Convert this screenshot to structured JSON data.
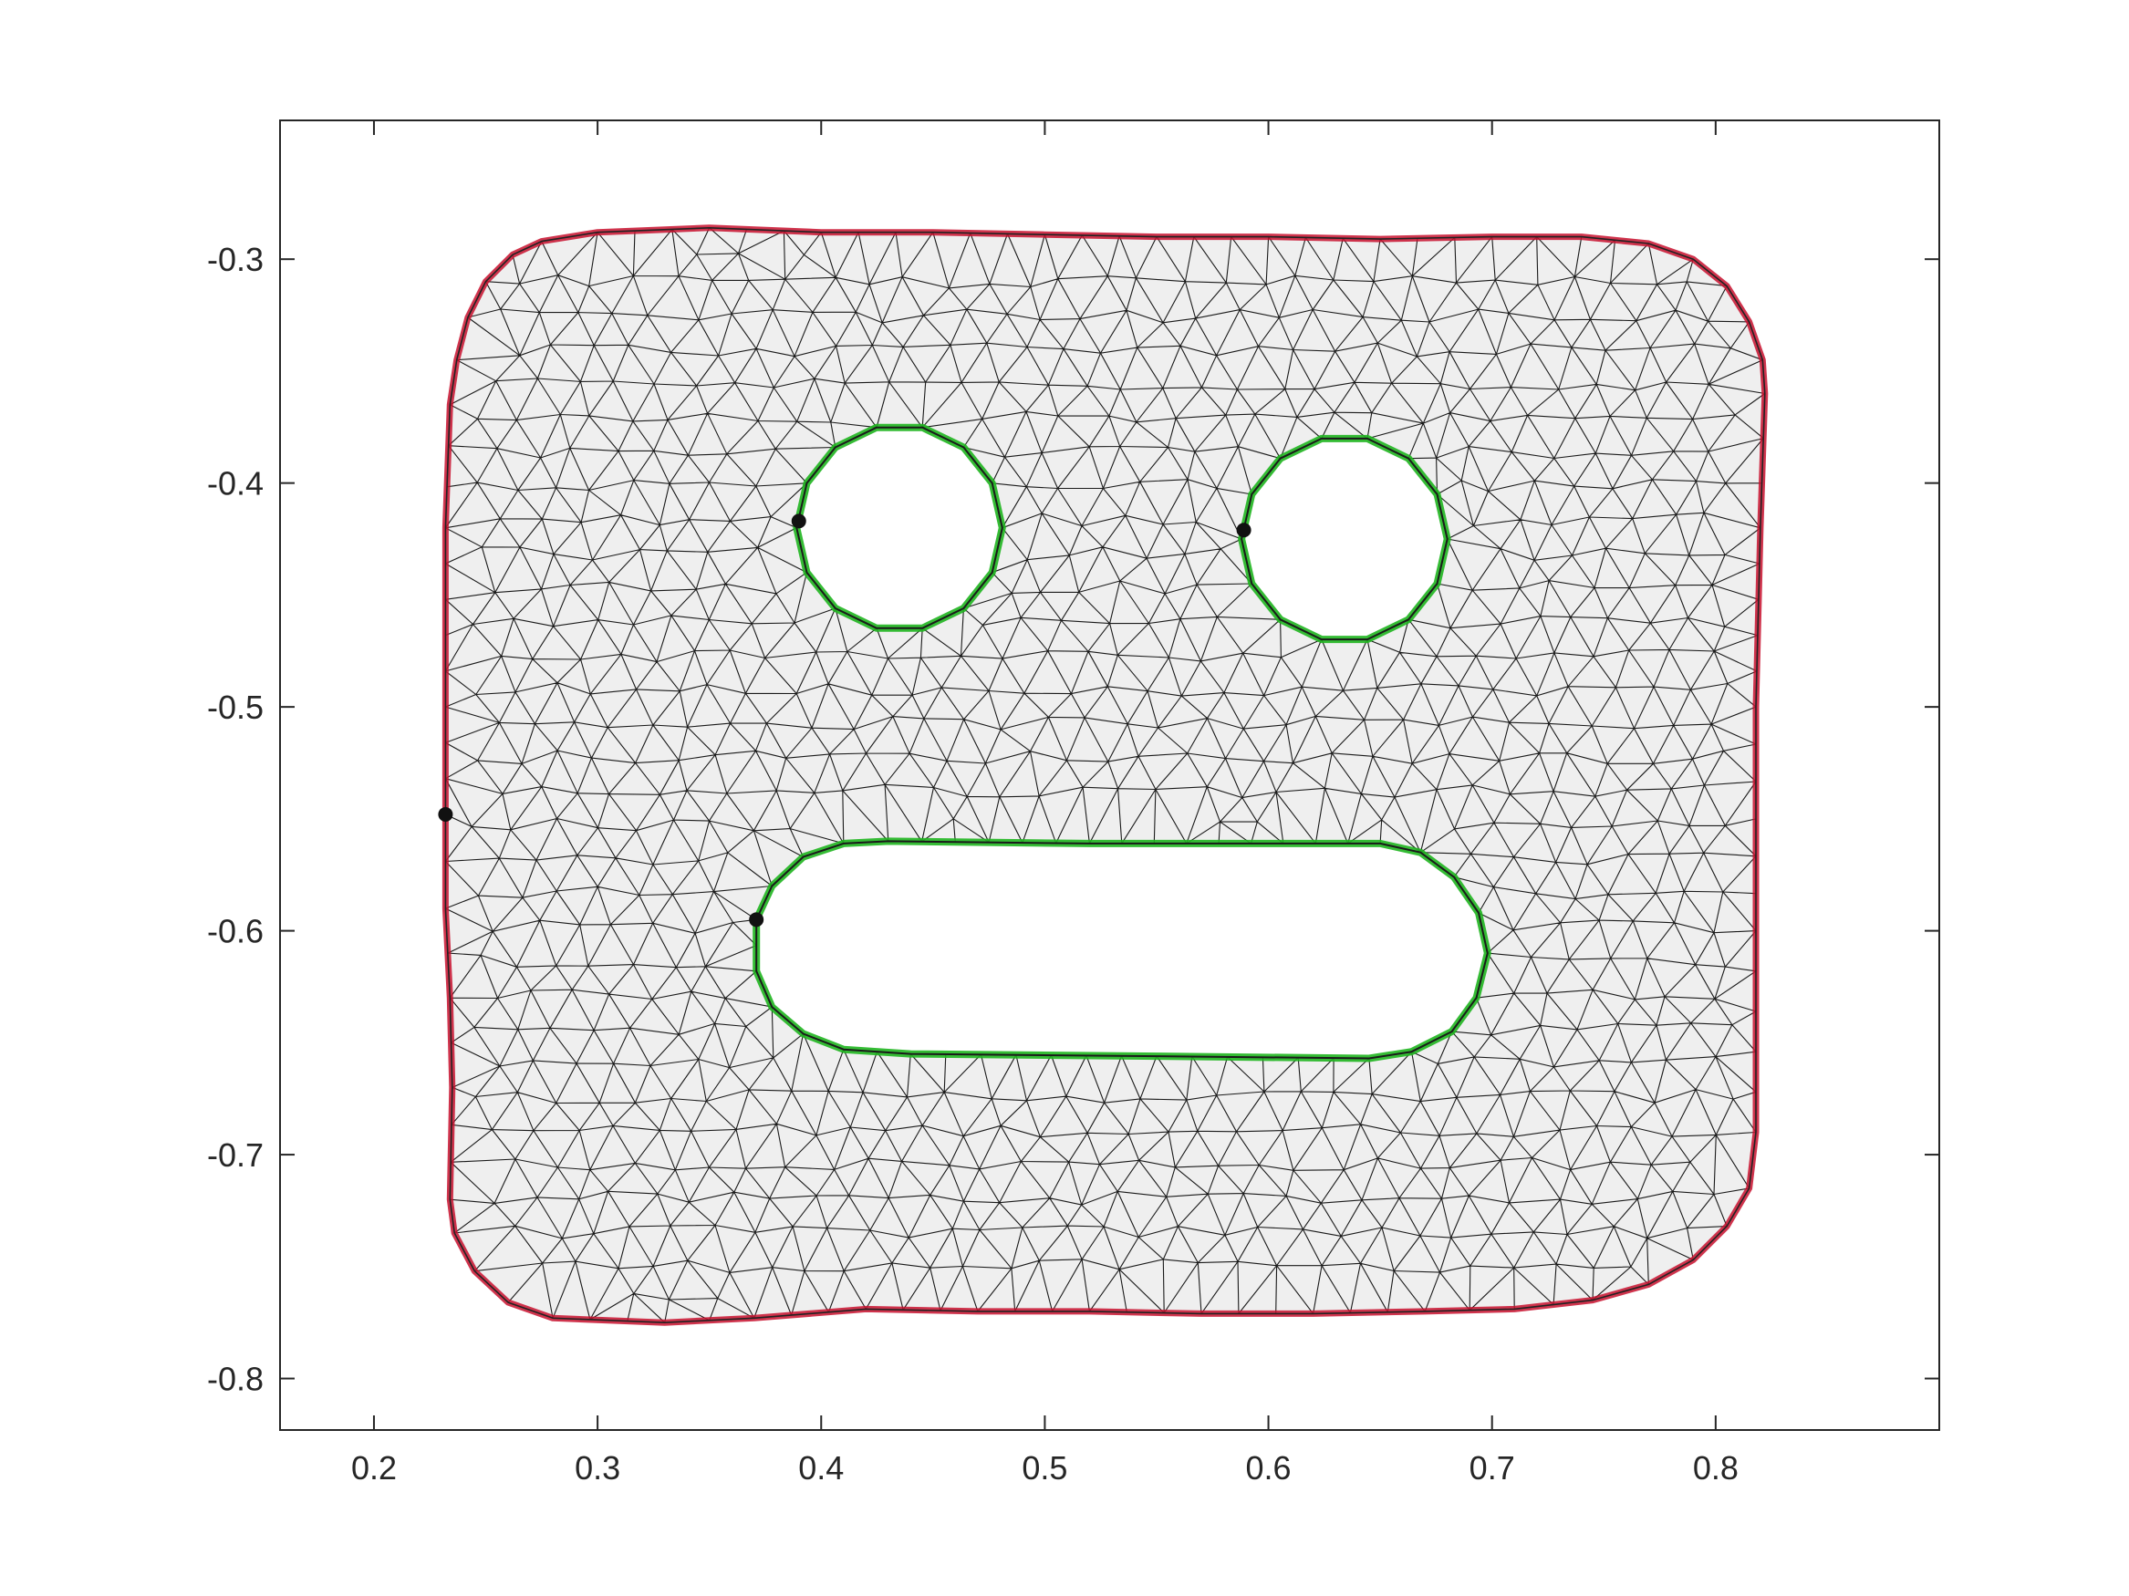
{
  "chart_data": {
    "type": "mesh",
    "title": "",
    "xlabel": "",
    "ylabel": "",
    "xlim": [
      0.158,
      0.9
    ],
    "ylim": [
      -0.823,
      -0.238
    ],
    "x_ticks": [
      0.2,
      0.3,
      0.4,
      0.5,
      0.6,
      0.7,
      0.8
    ],
    "x_tick_labels": [
      "0.2",
      "0.3",
      "0.4",
      "0.5",
      "0.6",
      "0.7",
      "0.8"
    ],
    "y_ticks": [
      -0.3,
      -0.4,
      -0.5,
      -0.6,
      -0.7,
      -0.8
    ],
    "y_tick_labels": [
      "-0.3",
      "-0.4",
      "-0.5",
      "-0.6",
      "-0.7",
      "-0.8"
    ],
    "grid": false,
    "colors": {
      "mesh_fill": "#efefef",
      "mesh_edge": "#1a1a1a",
      "outer_boundary": "#c8102e",
      "hole_boundary": "#1fb51f",
      "marker": "#111111",
      "axes": "#262626"
    },
    "outer_boundary": {
      "color": "red",
      "points": [
        [
          0.28,
          -0.773
        ],
        [
          0.33,
          -0.775
        ],
        [
          0.37,
          -0.773
        ],
        [
          0.42,
          -0.769
        ],
        [
          0.47,
          -0.77
        ],
        [
          0.52,
          -0.77
        ],
        [
          0.57,
          -0.771
        ],
        [
          0.62,
          -0.771
        ],
        [
          0.67,
          -0.77
        ],
        [
          0.71,
          -0.769
        ],
        [
          0.745,
          -0.765
        ],
        [
          0.77,
          -0.758
        ],
        [
          0.79,
          -0.747
        ],
        [
          0.805,
          -0.732
        ],
        [
          0.815,
          -0.715
        ],
        [
          0.818,
          -0.69
        ],
        [
          0.818,
          -0.6
        ],
        [
          0.818,
          -0.5
        ],
        [
          0.82,
          -0.42
        ],
        [
          0.822,
          -0.36
        ],
        [
          0.821,
          -0.345
        ],
        [
          0.815,
          -0.328
        ],
        [
          0.805,
          -0.312
        ],
        [
          0.79,
          -0.3
        ],
        [
          0.77,
          -0.293
        ],
        [
          0.74,
          -0.29
        ],
        [
          0.7,
          -0.29
        ],
        [
          0.65,
          -0.291
        ],
        [
          0.6,
          -0.29
        ],
        [
          0.55,
          -0.29
        ],
        [
          0.5,
          -0.289
        ],
        [
          0.45,
          -0.288
        ],
        [
          0.4,
          -0.288
        ],
        [
          0.35,
          -0.286
        ],
        [
          0.3,
          -0.288
        ],
        [
          0.275,
          -0.292
        ],
        [
          0.262,
          -0.298
        ],
        [
          0.25,
          -0.31
        ],
        [
          0.242,
          -0.326
        ],
        [
          0.237,
          -0.345
        ],
        [
          0.234,
          -0.365
        ],
        [
          0.232,
          -0.42
        ],
        [
          0.232,
          -0.5
        ],
        [
          0.232,
          -0.548
        ],
        [
          0.232,
          -0.59
        ],
        [
          0.234,
          -0.63
        ],
        [
          0.235,
          -0.67
        ],
        [
          0.234,
          -0.72
        ],
        [
          0.236,
          -0.735
        ],
        [
          0.245,
          -0.752
        ],
        [
          0.26,
          -0.766
        ]
      ]
    },
    "holes": [
      {
        "name": "left-eye",
        "center": [
          0.435,
          -0.42
        ],
        "radius": 0.046
      },
      {
        "name": "right-eye",
        "center": [
          0.634,
          -0.425
        ],
        "radius": 0.046
      },
      {
        "name": "mouth",
        "points": [
          [
            0.43,
            -0.56
          ],
          [
            0.52,
            -0.561
          ],
          [
            0.65,
            -0.561
          ],
          [
            0.668,
            -0.565
          ],
          [
            0.683,
            -0.576
          ],
          [
            0.694,
            -0.592
          ],
          [
            0.698,
            -0.61
          ],
          [
            0.693,
            -0.63
          ],
          [
            0.682,
            -0.645
          ],
          [
            0.664,
            -0.654
          ],
          [
            0.645,
            -0.657
          ],
          [
            0.55,
            -0.656
          ],
          [
            0.44,
            -0.655
          ],
          [
            0.41,
            -0.653
          ],
          [
            0.392,
            -0.646
          ],
          [
            0.378,
            -0.634
          ],
          [
            0.371,
            -0.618
          ],
          [
            0.371,
            -0.595
          ],
          [
            0.378,
            -0.58
          ],
          [
            0.392,
            -0.567
          ],
          [
            0.41,
            -0.561
          ]
        ]
      }
    ],
    "markers": [
      [
        0.232,
        -0.548
      ],
      [
        0.39,
        -0.417
      ],
      [
        0.589,
        -0.421
      ],
      [
        0.371,
        -0.595
      ]
    ]
  }
}
